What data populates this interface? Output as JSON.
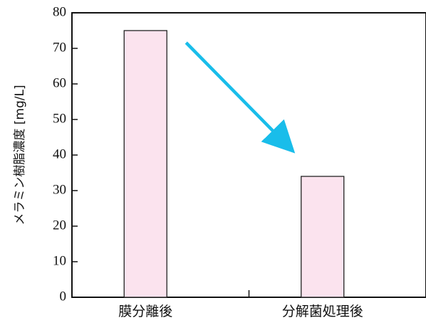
{
  "chart_data": {
    "type": "bar",
    "categories": [
      "膜分離後",
      "分解菌処理後"
    ],
    "values": [
      75,
      34
    ],
    "title": "",
    "xlabel": "",
    "ylabel": "メラミン樹脂濃度 [mg/L]",
    "ylim": [
      0,
      80
    ],
    "yticks": [
      0,
      10,
      20,
      30,
      40,
      50,
      60,
      70,
      80
    ],
    "grid": false,
    "legend": "none",
    "annotations": [
      {
        "type": "arrow",
        "meaning": "decrease from 膜分離後 to 分解菌処理後",
        "color": "#19bdea"
      }
    ],
    "colors": {
      "bar_fill": "#fbe3ee",
      "bar_stroke": "#222222",
      "axis": "#111111",
      "arrow": "#19bdea"
    }
  }
}
